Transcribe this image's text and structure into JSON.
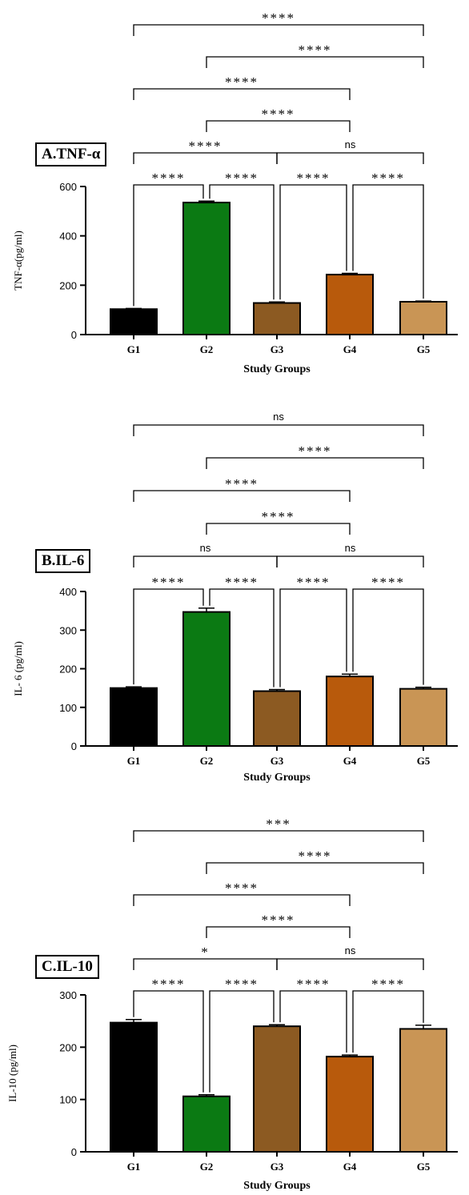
{
  "chart_data": [
    {
      "type": "bar",
      "panel_label": "A.TNF-α",
      "ylabel": "TNF-α(pg/ml)",
      "xlabel": "Study Groups",
      "categories": [
        "G1",
        "G2",
        "G3",
        "G4",
        "G5"
      ],
      "values": [
        103,
        535,
        128,
        243,
        133
      ],
      "errors": [
        3,
        6,
        4,
        5,
        3
      ],
      "colors": [
        "#000000",
        "#0b7a13",
        "#8c5a22",
        "#b85a0c",
        "#c99555"
      ],
      "ylim": [
        0,
        600
      ],
      "yticks": [
        "0",
        "200",
        "400",
        "600"
      ],
      "comparisons": [
        {
          "from": "G1",
          "to": "G2",
          "label": "****"
        },
        {
          "from": "G2",
          "to": "G3",
          "label": "****"
        },
        {
          "from": "G3",
          "to": "G4",
          "label": "****"
        },
        {
          "from": "G4",
          "to": "G5",
          "label": "****"
        },
        {
          "from": "G1",
          "to": "G3",
          "label": "****"
        },
        {
          "from": "G3",
          "to": "G5",
          "label": "ns"
        },
        {
          "from": "G2",
          "to": "G4",
          "label": "****"
        },
        {
          "from": "G1",
          "to": "G4",
          "label": "****"
        },
        {
          "from": "G2",
          "to": "G5",
          "label": "****"
        },
        {
          "from": "G1",
          "to": "G5",
          "label": "****"
        }
      ]
    },
    {
      "type": "bar",
      "panel_label": "B.IL-6",
      "ylabel": "IL- 6 (pg/ml)",
      "xlabel": "Study Groups",
      "categories": [
        "G1",
        "G2",
        "G3",
        "G4",
        "G5"
      ],
      "values": [
        150,
        347,
        142,
        180,
        148
      ],
      "errors": [
        3,
        10,
        4,
        6,
        4
      ],
      "colors": [
        "#000000",
        "#0b7a13",
        "#8c5a22",
        "#b85a0c",
        "#c99555"
      ],
      "ylim": [
        0,
        400
      ],
      "yticks": [
        "0",
        "100",
        "200",
        "300",
        "400"
      ],
      "comparisons": [
        {
          "from": "G1",
          "to": "G2",
          "label": "****"
        },
        {
          "from": "G2",
          "to": "G3",
          "label": "****"
        },
        {
          "from": "G3",
          "to": "G4",
          "label": "****"
        },
        {
          "from": "G4",
          "to": "G5",
          "label": "****"
        },
        {
          "from": "G1",
          "to": "G3",
          "label": "ns"
        },
        {
          "from": "G3",
          "to": "G5",
          "label": "ns"
        },
        {
          "from": "G2",
          "to": "G4",
          "label": "****"
        },
        {
          "from": "G1",
          "to": "G4",
          "label": "****"
        },
        {
          "from": "G2",
          "to": "G5",
          "label": "****"
        },
        {
          "from": "G1",
          "to": "G5",
          "label": "ns"
        }
      ]
    },
    {
      "type": "bar",
      "panel_label": "C.IL-10",
      "ylabel": "IL-10 (pg/ml)",
      "xlabel": "Study Groups",
      "categories": [
        "G1",
        "G2",
        "G3",
        "G4",
        "G5"
      ],
      "values": [
        247,
        106,
        240,
        182,
        235
      ],
      "errors": [
        6,
        3,
        3,
        3,
        7
      ],
      "colors": [
        "#000000",
        "#0b7a13",
        "#8c5a22",
        "#b85a0c",
        "#c99555"
      ],
      "ylim": [
        0,
        300
      ],
      "yticks": [
        "0",
        "100",
        "200",
        "300"
      ],
      "comparisons": [
        {
          "from": "G1",
          "to": "G2",
          "label": "****"
        },
        {
          "from": "G2",
          "to": "G3",
          "label": "****"
        },
        {
          "from": "G3",
          "to": "G4",
          "label": "****"
        },
        {
          "from": "G4",
          "to": "G5",
          "label": "****"
        },
        {
          "from": "G1",
          "to": "G3",
          "label": "*"
        },
        {
          "from": "G3",
          "to": "G5",
          "label": "ns"
        },
        {
          "from": "G2",
          "to": "G4",
          "label": "****"
        },
        {
          "from": "G1",
          "to": "G4",
          "label": "****"
        },
        {
          "from": "G2",
          "to": "G5",
          "label": "****"
        },
        {
          "from": "G1",
          "to": "G5",
          "label": "***"
        }
      ]
    }
  ]
}
